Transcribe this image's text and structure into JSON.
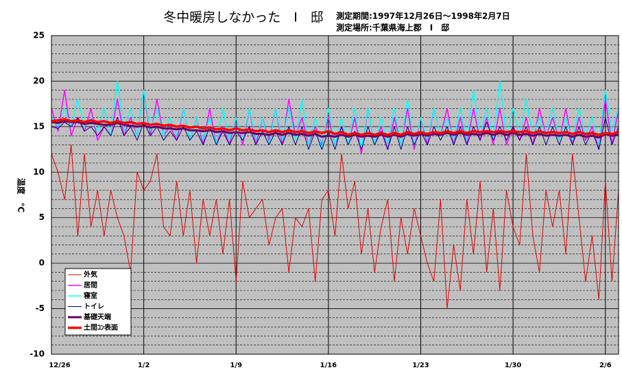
{
  "chart_data": {
    "type": "line",
    "title": "冬中暖房しなかった　I　邸",
    "subtitle": [
      "測定期間:1997年12月26日～1998年2月7日",
      "測定場所:千葉県海上郡　I　邸"
    ],
    "ylabel": "温度　℃",
    "xlim": [
      0,
      43
    ],
    "xticks": [
      {
        "value": 0,
        "label": "12/26"
      },
      {
        "value": 7,
        "label": "1/2"
      },
      {
        "value": 14,
        "label": "1/9"
      },
      {
        "value": 21,
        "label": "1/16"
      },
      {
        "value": 28,
        "label": "1/23"
      },
      {
        "value": 35,
        "label": "1/30"
      },
      {
        "value": 42,
        "label": "2/6"
      }
    ],
    "ylim": [
      -10,
      25
    ],
    "yticks": [
      -10,
      -5,
      0,
      5,
      10,
      15,
      20,
      25
    ],
    "y_minor_grid": [
      -9,
      -8,
      -7,
      -6,
      -4,
      -3,
      -2,
      -1,
      1,
      2,
      3,
      4,
      6,
      7,
      8,
      9,
      11,
      12,
      13,
      14,
      16,
      17,
      18,
      19,
      21,
      22,
      23,
      24
    ],
    "grid": true,
    "legend": "lower left",
    "x": [
      0,
      0.5,
      1,
      1.5,
      2,
      2.5,
      3,
      3.5,
      4,
      4.5,
      5,
      5.5,
      6,
      6.5,
      7,
      7.5,
      8,
      8.5,
      9,
      9.5,
      10,
      10.5,
      11,
      11.5,
      12,
      12.5,
      13,
      13.5,
      14,
      14.5,
      15,
      15.5,
      16,
      16.5,
      17,
      17.5,
      18,
      18.5,
      19,
      19.5,
      20,
      20.5,
      21,
      21.5,
      22,
      22.5,
      23,
      23.5,
      24,
      24.5,
      25,
      25.5,
      26,
      26.5,
      27,
      27.5,
      28,
      28.5,
      29,
      29.5,
      30,
      30.5,
      31,
      31.5,
      32,
      32.5,
      33,
      33.5,
      34,
      34.5,
      35,
      35.5,
      36,
      36.5,
      37,
      37.5,
      38,
      38.5,
      39,
      39.5,
      40,
      40.5,
      41,
      41.5,
      42,
      42.5,
      43
    ],
    "series": [
      {
        "name": "外気",
        "color": "#e00000",
        "width": 1,
        "values": [
          12,
          10,
          7,
          13,
          3,
          12,
          4,
          8,
          3,
          8,
          5,
          3,
          -1,
          10,
          8,
          9,
          12,
          4,
          3,
          9,
          3,
          8,
          0,
          7,
          3,
          7,
          1,
          7,
          -2,
          9,
          5,
          6,
          7,
          2,
          5,
          6,
          -1,
          5,
          4,
          6,
          -2,
          7,
          8,
          3,
          12,
          6,
          9,
          1,
          6,
          -1,
          4,
          7,
          -2,
          5,
          1,
          6,
          3,
          0,
          -2,
          7,
          -5,
          2,
          -3,
          7,
          1,
          9,
          -1,
          6,
          -3,
          8,
          4,
          2,
          12,
          3,
          -1,
          8,
          4,
          8,
          1,
          12,
          5,
          -2,
          3,
          -4,
          9,
          -2,
          8
        ]
      },
      {
        "name": "居間",
        "color": "#ff00ff",
        "width": 1.5,
        "values": [
          17,
          14.5,
          19,
          14,
          16,
          14.5,
          17,
          13.5,
          15,
          14,
          18,
          14,
          16,
          14,
          19,
          14,
          18,
          14,
          15,
          13.5,
          17,
          13.5,
          16,
          13,
          17,
          13,
          15,
          13,
          16,
          13,
          17,
          13,
          16,
          13.5,
          17,
          13,
          18,
          14,
          16,
          13,
          15,
          13,
          16,
          13,
          15,
          13,
          16,
          12,
          17,
          13,
          15,
          12.5,
          16,
          13,
          17,
          12.5,
          16,
          13,
          17,
          14,
          17,
          13,
          16,
          13,
          17,
          13.5,
          16,
          13,
          17,
          13,
          15,
          13.5,
          16,
          13,
          17,
          14,
          16,
          13.5,
          17,
          13,
          16,
          13.5,
          15,
          12.5,
          18,
          13,
          17
        ]
      },
      {
        "name": "寝室",
        "color": "#00ffff",
        "width": 1.5,
        "values": [
          16,
          15,
          17,
          15,
          18,
          15,
          16,
          14.5,
          17,
          14,
          20,
          14.5,
          17,
          14,
          19,
          14.5,
          17,
          14,
          16,
          14,
          17,
          13.5,
          16,
          13.5,
          16,
          13,
          17,
          13.5,
          16,
          13.5,
          17,
          13.5,
          16,
          13,
          17,
          13.5,
          17,
          13.5,
          18,
          13,
          16,
          12.5,
          17,
          13,
          16,
          13,
          17,
          12.5,
          17,
          13,
          16,
          13,
          17,
          13,
          18,
          13,
          16,
          13.5,
          17,
          14,
          16,
          13.5,
          17,
          13.5,
          19,
          14,
          17,
          13.5,
          20,
          14,
          17,
          14,
          18,
          14,
          16,
          14,
          17,
          13.5,
          16,
          13.5,
          17,
          14,
          16,
          13,
          19,
          14.5,
          17
        ]
      },
      {
        "name": "トイレ",
        "color": "#000080",
        "width": 1,
        "values": [
          15,
          14.8,
          15.5,
          15,
          16,
          14.5,
          15,
          14,
          15,
          14,
          16,
          14,
          15,
          13.5,
          15.5,
          14,
          15,
          13.5,
          14.5,
          13.5,
          15,
          13.5,
          14.5,
          13,
          15,
          13,
          14.5,
          13,
          14.5,
          13.5,
          15,
          13,
          14.5,
          13,
          14.5,
          13,
          15,
          13,
          15,
          12.5,
          14.5,
          12.5,
          14.5,
          12.5,
          15,
          13,
          14.5,
          12.5,
          15,
          13,
          14.5,
          12.5,
          15,
          12.5,
          15,
          13,
          14.5,
          13,
          15,
          13.5,
          15,
          13,
          15,
          13,
          15,
          13.5,
          15.5,
          13.5,
          15,
          13.5,
          15,
          13.5,
          15,
          13,
          15,
          13,
          15,
          13,
          15,
          13,
          15,
          13,
          14.5,
          12.5,
          16,
          13,
          15
        ]
      },
      {
        "name": "基礎天端",
        "color": "#660066",
        "width": 3,
        "values": [
          15.5,
          15.4,
          15.6,
          15.5,
          15.5,
          15.3,
          15.4,
          15.3,
          15.2,
          15.2,
          15.4,
          15.2,
          15.1,
          15.0,
          15.1,
          14.9,
          15.0,
          14.8,
          14.8,
          14.7,
          14.8,
          14.6,
          14.6,
          14.5,
          14.6,
          14.4,
          14.5,
          14.3,
          14.4,
          14.3,
          14.4,
          14.2,
          14.2,
          14.1,
          14.3,
          14.1,
          14.3,
          14.1,
          14.2,
          14.0,
          14.2,
          13.9,
          14.0,
          13.9,
          14.1,
          13.9,
          14.1,
          13.9,
          14.0,
          13.9,
          14.1,
          13.9,
          14.1,
          13.9,
          14.2,
          14.0,
          14.2,
          14.0,
          14.2,
          14.1,
          14.3,
          14.1,
          14.3,
          14.1,
          14.2,
          14.1,
          14.3,
          14.1,
          14.3,
          14.1,
          14.3,
          14.1,
          14.2,
          14.0,
          14.2,
          14.0,
          14.1,
          14.0,
          14.1,
          13.9,
          14.1,
          13.9,
          14.0,
          13.8,
          14.2,
          14.0,
          14.1
        ]
      },
      {
        "name": "土間ｺﾝ表面",
        "color": "#ff0000",
        "width": 3.5,
        "values": [
          15.6,
          15.7,
          15.8,
          15.6,
          15.7,
          15.5,
          15.7,
          15.5,
          15.6,
          15.4,
          15.6,
          15.4,
          15.5,
          15.3,
          15.4,
          15.2,
          15.3,
          15.1,
          15.2,
          15.0,
          15.1,
          14.9,
          15.0,
          14.8,
          14.9,
          14.7,
          14.8,
          14.6,
          14.8,
          14.6,
          14.7,
          14.5,
          14.6,
          14.4,
          14.6,
          14.4,
          14.6,
          14.4,
          14.5,
          14.3,
          14.5,
          14.3,
          14.5,
          14.2,
          14.4,
          14.1,
          14.3,
          14.1,
          14.3,
          14.1,
          14.3,
          14.1,
          14.3,
          14.1,
          14.4,
          14.2,
          14.4,
          14.2,
          14.4,
          14.3,
          14.5,
          14.3,
          14.5,
          14.3,
          14.5,
          14.4,
          14.5,
          14.4,
          14.5,
          14.4,
          14.5,
          14.4,
          14.5,
          14.3,
          14.5,
          14.3,
          14.4,
          14.3,
          14.4,
          14.2,
          14.4,
          14.2,
          14.3,
          14.1,
          14.3,
          14.2,
          14.4
        ]
      }
    ]
  }
}
